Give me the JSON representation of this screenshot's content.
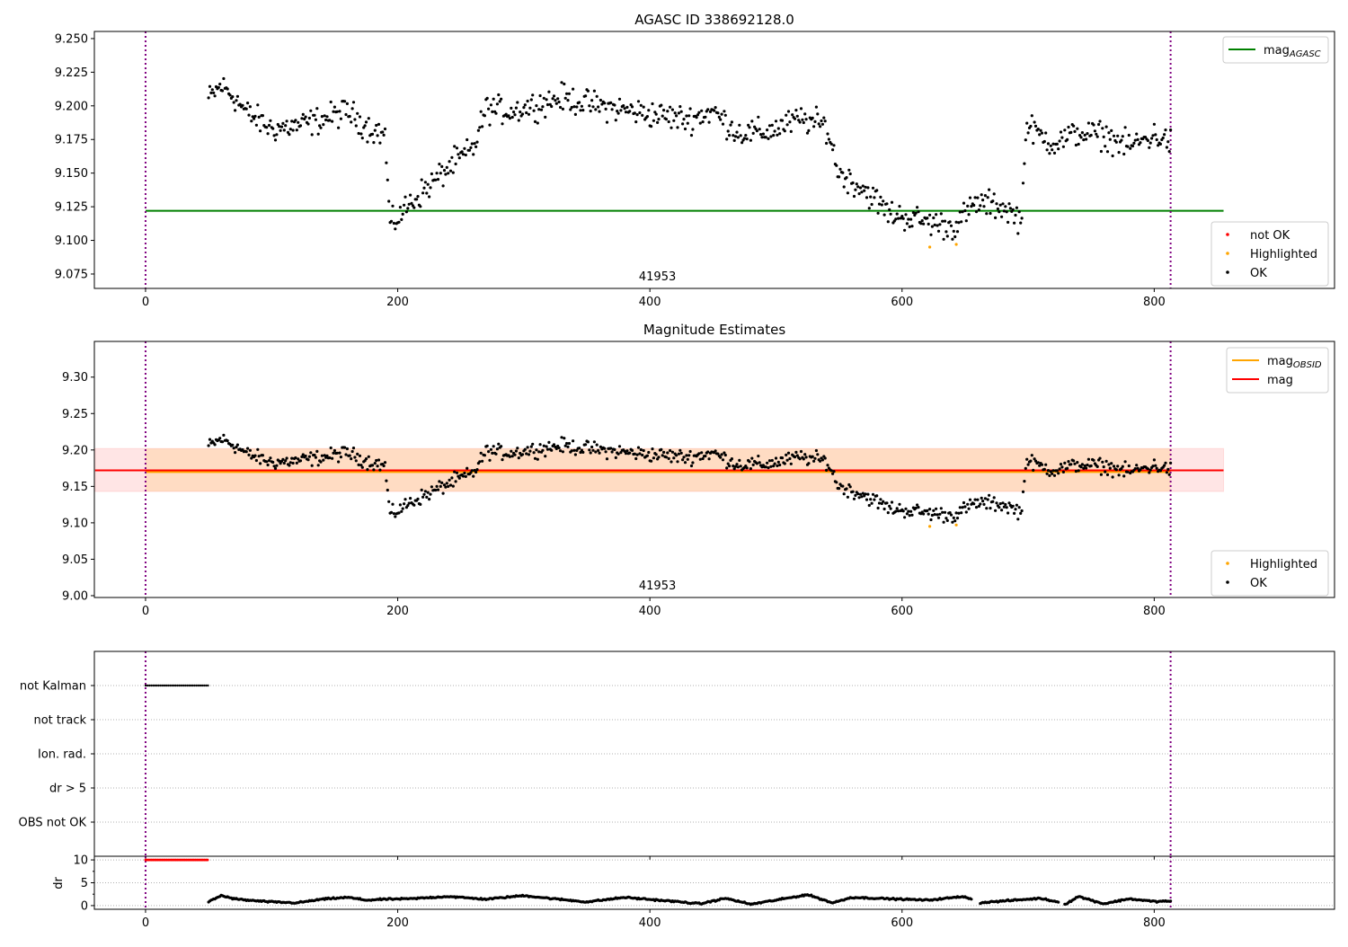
{
  "chart_data": [
    {
      "type": "scatter",
      "title": "AGASC ID 338692128.0",
      "xlim": [
        -40.6,
        943
      ],
      "ylim": [
        9.0643,
        9.2553
      ],
      "xticks": [
        0,
        200,
        400,
        600,
        800
      ],
      "yticks": [
        "9.075",
        "9.100",
        "9.125",
        "9.150",
        "9.175",
        "9.200",
        "9.225",
        "9.250"
      ],
      "annotation": "41953",
      "vlines": [
        0,
        813
      ],
      "hline": {
        "name": "mag_AGASC",
        "value": 9.122,
        "x_range": [
          0,
          855
        ],
        "color": "#008000"
      },
      "legend_upper": [
        {
          "label": "mag",
          "sub": "AGASC",
          "color": "#008000",
          "kind": "line"
        }
      ],
      "legend_lower": [
        {
          "label": "not OK",
          "color": "#ff0000",
          "kind": "point"
        },
        {
          "label": "Highlighted",
          "color": "#ffa500",
          "kind": "point"
        },
        {
          "label": "OK",
          "color": "#000000",
          "kind": "point"
        }
      ]
    },
    {
      "type": "scatter",
      "title": "Magnitude Estimates",
      "xlim": [
        -40.6,
        943
      ],
      "ylim": [
        8.9975,
        9.349
      ],
      "xticks": [
        0,
        200,
        400,
        600,
        800
      ],
      "yticks": [
        "9.00",
        "9.05",
        "9.10",
        "9.15",
        "9.20",
        "9.25",
        "9.30"
      ],
      "annotation": "41953",
      "vlines": [
        0,
        813
      ],
      "mag": {
        "value": 9.172,
        "band": [
          9.143,
          9.202
        ],
        "x_range": [
          -40,
          855
        ],
        "color": "#ff0000"
      },
      "mag_obsid": {
        "value": 9.171,
        "band": [
          9.143,
          9.202
        ],
        "x_range": [
          0,
          813
        ],
        "color": "#ffa500"
      },
      "legend_upper": [
        {
          "label": "mag",
          "sub": "OBSID",
          "color": "#ffa500",
          "kind": "line"
        },
        {
          "label": "mag",
          "sub": "",
          "color": "#ff0000",
          "kind": "line"
        }
      ],
      "legend_lower": [
        {
          "label": "Highlighted",
          "color": "#ffa500",
          "kind": "point"
        },
        {
          "label": "OK",
          "color": "#000000",
          "kind": "point"
        }
      ]
    },
    {
      "type": "scatter",
      "title": "",
      "categories": [
        "OBS not OK",
        "dr > 5",
        "Ion. rad.",
        "not track",
        "not Kalman"
      ],
      "ylim": [
        -1,
        5
      ],
      "flags": [
        {
          "category": "not Kalman",
          "x_range": [
            0,
            50
          ]
        }
      ]
    },
    {
      "type": "scatter",
      "ylabel": "dr",
      "ylim": [
        -0.8,
        10.8
      ],
      "yticks": [
        "0",
        "5",
        "10"
      ],
      "xticks": [
        0,
        200,
        400,
        600,
        800
      ],
      "not_ok_dr": {
        "value": 10,
        "x_range": [
          0,
          50
        ],
        "color": "#ff0000"
      },
      "dr_trend": [
        [
          50,
          0.8
        ],
        [
          60,
          2.2
        ],
        [
          70,
          1.5
        ],
        [
          80,
          1.2
        ],
        [
          100,
          0.8
        ],
        [
          120,
          0.6
        ],
        [
          140,
          1.4
        ],
        [
          160,
          1.8
        ],
        [
          175,
          1.2
        ],
        [
          190,
          1.4
        ],
        [
          210,
          1.5
        ],
        [
          240,
          2.0
        ],
        [
          270,
          1.4
        ],
        [
          300,
          2.2
        ],
        [
          320,
          1.6
        ],
        [
          350,
          0.8
        ],
        [
          380,
          1.8
        ],
        [
          420,
          0.9
        ],
        [
          440,
          0.4
        ],
        [
          460,
          1.6
        ],
        [
          480,
          0.3
        ],
        [
          500,
          1.2
        ],
        [
          525,
          2.4
        ],
        [
          545,
          0.6
        ],
        [
          560,
          1.8
        ],
        [
          590,
          1.5
        ],
        [
          620,
          1.2
        ],
        [
          650,
          2.0
        ],
        [
          660,
          0.6
        ],
        [
          690,
          1.2
        ],
        [
          710,
          1.6
        ],
        [
          730,
          0.4
        ],
        [
          740,
          2.0
        ],
        [
          760,
          0.4
        ],
        [
          780,
          1.5
        ],
        [
          800,
          0.9
        ],
        [
          813,
          1.0
        ]
      ]
    }
  ],
  "magnitude_series": {
    "x_range": [
      50,
      813
    ],
    "trend": [
      [
        50,
        9.205
      ],
      [
        60,
        9.215
      ],
      [
        70,
        9.207
      ],
      [
        80,
        9.195
      ],
      [
        100,
        9.183
      ],
      [
        120,
        9.185
      ],
      [
        140,
        9.19
      ],
      [
        160,
        9.196
      ],
      [
        175,
        9.185
      ],
      [
        190,
        9.178
      ],
      [
        194,
        9.11
      ],
      [
        210,
        9.128
      ],
      [
        230,
        9.145
      ],
      [
        245,
        9.158
      ],
      [
        260,
        9.168
      ],
      [
        270,
        9.198
      ],
      [
        290,
        9.196
      ],
      [
        330,
        9.206
      ],
      [
        360,
        9.2
      ],
      [
        400,
        9.194
      ],
      [
        430,
        9.19
      ],
      [
        450,
        9.196
      ],
      [
        470,
        9.18
      ],
      [
        490,
        9.18
      ],
      [
        520,
        9.19
      ],
      [
        540,
        9.185
      ],
      [
        550,
        9.15
      ],
      [
        570,
        9.138
      ],
      [
        590,
        9.12
      ],
      [
        620,
        9.114
      ],
      [
        640,
        9.11
      ],
      [
        660,
        9.128
      ],
      [
        680,
        9.125
      ],
      [
        695,
        9.115
      ],
      [
        698,
        9.185
      ],
      [
        720,
        9.172
      ],
      [
        740,
        9.18
      ],
      [
        760,
        9.178
      ],
      [
        780,
        9.17
      ],
      [
        800,
        9.178
      ],
      [
        813,
        9.173
      ]
    ],
    "noise": 0.009,
    "highlighted": [
      [
        622,
        9.095
      ],
      [
        643,
        9.097
      ]
    ]
  }
}
